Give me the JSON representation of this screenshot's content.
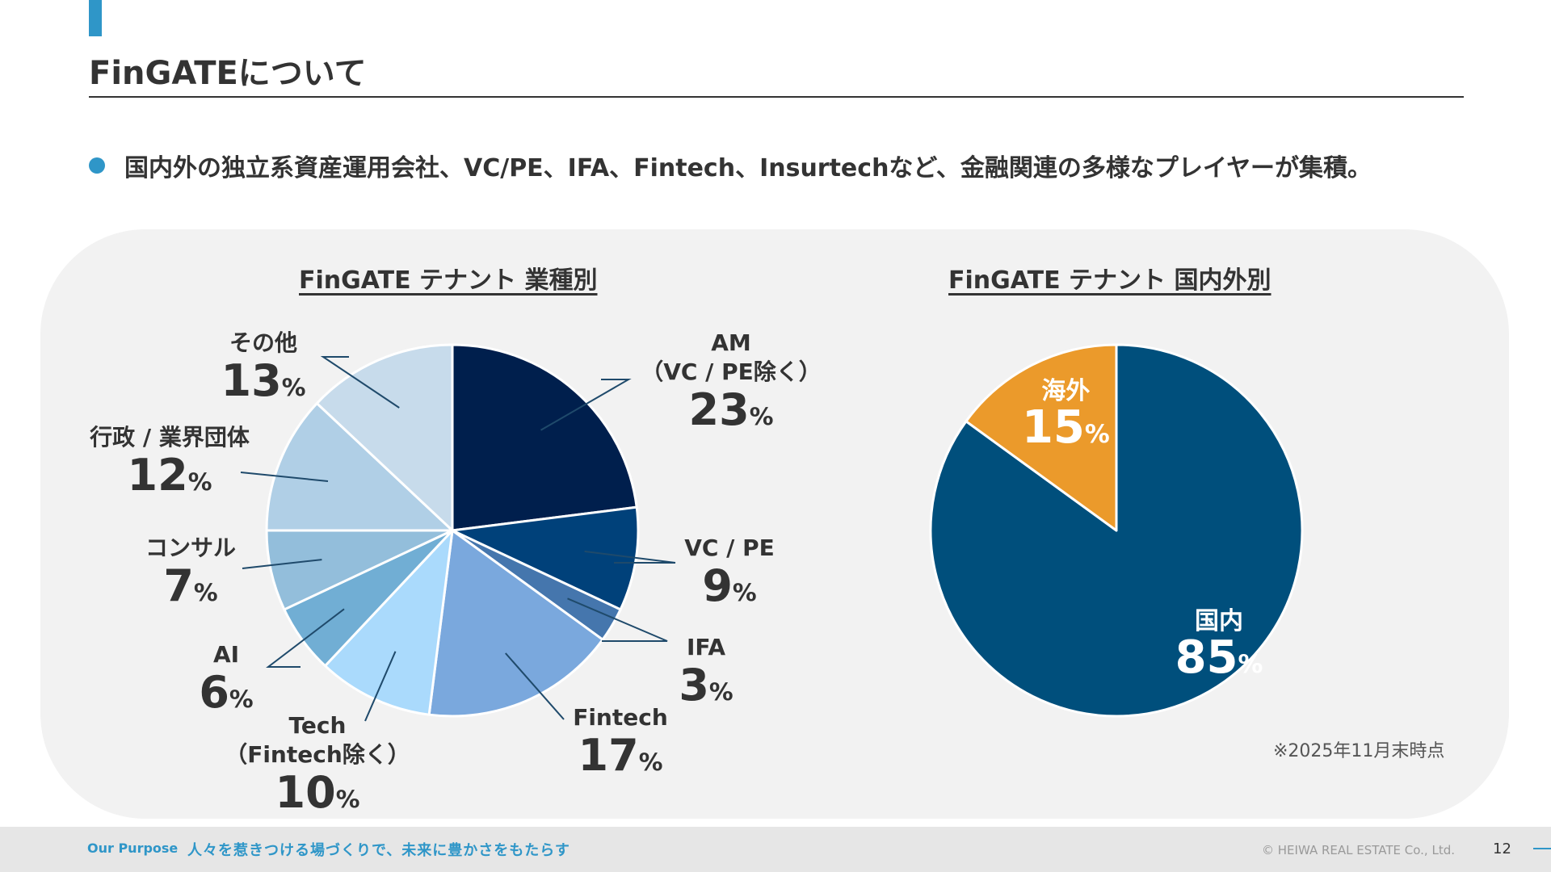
{
  "page": {
    "title": "FinGATEについて",
    "bullet": "国内外の独立系資産運用会社、VC/PE、IFA、Fintech、Insurtechなど、金融関連の多様なプレイヤーが集積。",
    "note": "※2025年11月末時点"
  },
  "footer": {
    "purpose_label": "Our Purpose",
    "purpose_text": "人々を惹きつける場づくりで、未来に豊かさをもたらす",
    "copyright": "© HEIWA REAL ESTATE Co., Ltd.",
    "page_number": "12"
  },
  "colors": {
    "accent": "#2f96c8",
    "panel": "#f2f2f2",
    "text": "#333333"
  },
  "chart_data": [
    {
      "type": "pie",
      "title": "FinGATE テナント 業種別",
      "unit": "%",
      "slices": [
        {
          "label": "AM\n（VC / PE除く）",
          "value": 23,
          "color": "#001f4d"
        },
        {
          "label": "VC / PE",
          "value": 9,
          "color": "#00417a"
        },
        {
          "label": "IFA",
          "value": 3,
          "color": "#4576ad"
        },
        {
          "label": "Fintech",
          "value": 17,
          "color": "#7aa8dd"
        },
        {
          "label": "Tech\n（Fintech除く）",
          "value": 10,
          "color": "#aadafc"
        },
        {
          "label": "AI",
          "value": 6,
          "color": "#71aed4"
        },
        {
          "label": "コンサル",
          "value": 7,
          "color": "#93bedb"
        },
        {
          "label": "行政 / 業界団体",
          "value": 12,
          "color": "#b0cfe6"
        },
        {
          "label": "その他",
          "value": 13,
          "color": "#c7dbeb"
        }
      ]
    },
    {
      "type": "pie",
      "title": "FinGATE テナント 国内外別",
      "unit": "%",
      "slices": [
        {
          "label": "国内",
          "value": 85,
          "color": "#004f7c"
        },
        {
          "label": "海外",
          "value": 15,
          "color": "#eb9a2b"
        }
      ]
    }
  ]
}
